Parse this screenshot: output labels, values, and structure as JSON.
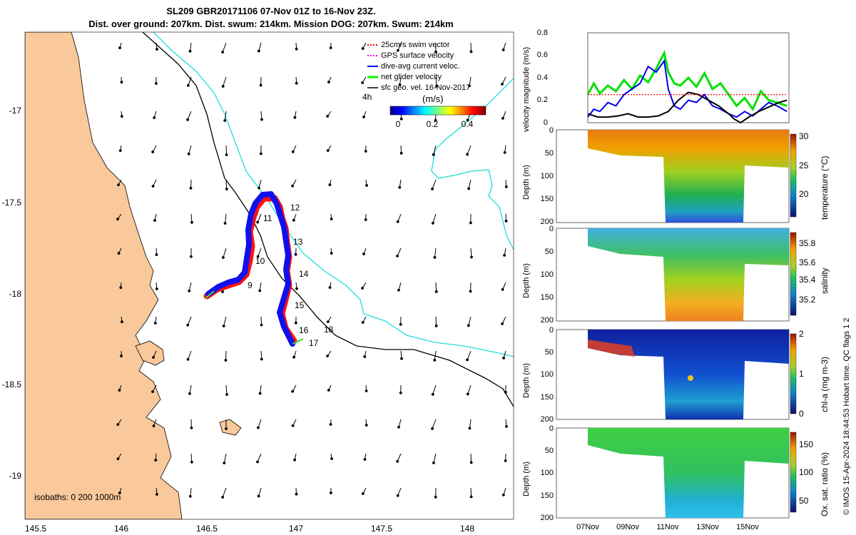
{
  "header": {
    "title_line1": "SL209 GBR20171106 07-Nov 01Z to 16-Nov 23Z.",
    "title_line2": "Dist. over ground: 207km. Dist. swum: 214km. Mission DOG: 207km. Swum: 214km"
  },
  "map": {
    "x_ticks": [
      "145.5",
      "146",
      "146.5",
      "147",
      "147.5",
      "148"
    ],
    "y_ticks": [
      "-17",
      "-17.5",
      "-18",
      "-18.5",
      "-19"
    ],
    "isobaths_label": "isobaths: 0   200  1000m",
    "track_day_labels": [
      "9",
      "10",
      "11",
      "12",
      "13",
      "14",
      "15",
      "16",
      "17",
      "18"
    ],
    "legend": [
      {
        "label": "25cm/s swim vector",
        "color": "#ff0000"
      },
      {
        "label": "GPS surface velocity",
        "color": "#ff00ff"
      },
      {
        "label": "dive-avg current veloc.",
        "color": "#0000ff"
      },
      {
        "label": "net glider velocity",
        "color": "#00ff00"
      },
      {
        "label": "sfc geo. vel. 16-Nov-2017",
        "color": "#000000"
      }
    ],
    "legend_time": "4h",
    "colorbar_units": "(m/s)",
    "colorbar_ticks": [
      "0",
      "0.2",
      "0.4"
    ],
    "colors": {
      "land": "#f9c89b",
      "isobath_200": "#000000",
      "isobath_1000": "#22dddd"
    }
  },
  "footer": {
    "timestamp": "© IMOS 15-Apr-2024 18:44:53 Hobart time. QC flags 1  2"
  },
  "chart_data": [
    {
      "type": "line",
      "title": "",
      "ylabel": "velocity magnitude (m/s)",
      "ylim": [
        0,
        0.8
      ],
      "y_ticks": [
        "0",
        "0.2",
        "0.4",
        "0.6",
        "0.8"
      ],
      "series": [
        {
          "name": "net glider velocity",
          "color": "#00e000",
          "x": [
            7,
            7.3,
            7.6,
            8,
            8.4,
            8.8,
            9.2,
            9.6,
            10,
            10.4,
            10.8,
            11,
            11.3,
            11.6,
            12,
            12.4,
            12.8,
            13.2,
            13.6,
            14,
            14.4,
            14.8,
            15.2,
            15.6,
            16,
            16.4,
            16.9
          ],
          "values": [
            0.25,
            0.35,
            0.26,
            0.33,
            0.28,
            0.38,
            0.3,
            0.42,
            0.36,
            0.48,
            0.62,
            0.45,
            0.35,
            0.33,
            0.4,
            0.32,
            0.44,
            0.3,
            0.35,
            0.25,
            0.15,
            0.22,
            0.12,
            0.28,
            0.2,
            0.18,
            0.15
          ]
        },
        {
          "name": "dive-avg current veloc.",
          "color": "#0000ee",
          "x": [
            7,
            7.3,
            7.6,
            8,
            8.4,
            8.8,
            9.2,
            9.6,
            10,
            10.4,
            10.8,
            11,
            11.3,
            11.6,
            12,
            12.4,
            12.8,
            13.2,
            13.6,
            14,
            14.4,
            14.8,
            15.2,
            15.6,
            16,
            16.4,
            16.9
          ],
          "values": [
            0.05,
            0.12,
            0.1,
            0.18,
            0.15,
            0.25,
            0.3,
            0.35,
            0.5,
            0.45,
            0.55,
            0.3,
            0.15,
            0.12,
            0.2,
            0.18,
            0.25,
            0.15,
            0.12,
            0.08,
            0.05,
            0.1,
            0.06,
            0.12,
            0.18,
            0.15,
            0.1
          ]
        },
        {
          "name": "sfc geo. vel.",
          "color": "#000000",
          "x": [
            7,
            7.5,
            8,
            8.5,
            9,
            9.5,
            10,
            10.5,
            11,
            11.5,
            12,
            12.5,
            13,
            13.5,
            14,
            14.3,
            14.6,
            15,
            15.5,
            16,
            16.5,
            16.9
          ],
          "values": [
            0.08,
            0.05,
            0.05,
            0.06,
            0.08,
            0.05,
            0.05,
            0.06,
            0.1,
            0.2,
            0.27,
            0.25,
            0.2,
            0.15,
            0.08,
            0.03,
            0.0,
            0.05,
            0.1,
            0.14,
            0.18,
            0.2
          ]
        },
        {
          "name": "25cm/s swim vector",
          "color": "#ff0000",
          "x": [
            7,
            7.5,
            8,
            8.5,
            9,
            9.5,
            10,
            10.5,
            11,
            11.5,
            12,
            12.5,
            13,
            13.5,
            14,
            14.5,
            15,
            15.5,
            16,
            16.5,
            16.9
          ],
          "values": [
            0.25,
            0.25,
            0.25,
            0.25,
            0.25,
            0.25,
            0.25,
            0.25,
            0.25,
            0.25,
            0.25,
            0.25,
            0.25,
            0.25,
            0.25,
            0.25,
            0.25,
            0.25,
            0.25,
            0.25,
            0.25
          ]
        }
      ]
    },
    {
      "type": "heatmap",
      "ylabel": "Depth (m)",
      "colorbar_label": "temperature (°C)",
      "colorbar_ticks": [
        "20",
        "25",
        "30"
      ],
      "clim": [
        16,
        30
      ],
      "ylim": [
        200,
        0
      ],
      "y_ticks": [
        "0",
        "50",
        "100",
        "150",
        "200"
      ]
    },
    {
      "type": "heatmap",
      "ylabel": "Depth (m)",
      "colorbar_label": "salinity",
      "colorbar_ticks": [
        "35.2",
        "35.4",
        "35.6",
        "35.8"
      ],
      "clim": [
        35.1,
        35.9
      ],
      "ylim": [
        200,
        0
      ],
      "y_ticks": [
        "0",
        "50",
        "100",
        "150",
        "200"
      ]
    },
    {
      "type": "heatmap",
      "ylabel": "Depth (m)",
      "colorbar_label": "chl-a (mg m-3)",
      "colorbar_ticks": [
        "0",
        "1",
        "2"
      ],
      "clim": [
        0,
        2
      ],
      "ylim": [
        200,
        0
      ],
      "y_ticks": [
        "0",
        "50",
        "100",
        "150",
        "200"
      ]
    },
    {
      "type": "heatmap",
      "ylabel": "Depth (m)",
      "colorbar_label": "Ox. sat. ratio (%)",
      "colorbar_ticks": [
        "50",
        "100",
        "150"
      ],
      "clim": [
        20,
        175
      ],
      "ylim": [
        200,
        0
      ],
      "y_ticks": [
        "0",
        "50",
        "100",
        "150",
        "200"
      ],
      "x_ticks": [
        "07Nov",
        "09Nov",
        "11Nov",
        "13Nov",
        "15Nov"
      ]
    }
  ]
}
